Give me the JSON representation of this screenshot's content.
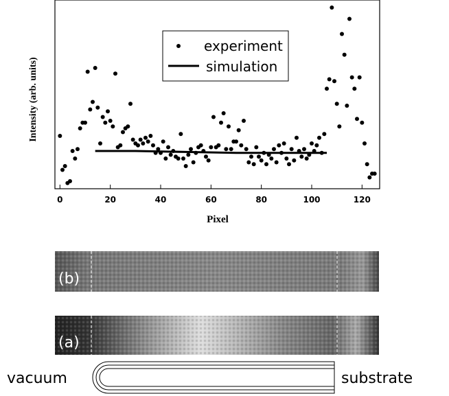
{
  "chart_data": {
    "type": "scatter",
    "y_label": "Intensity (arb. units)",
    "x_label": "Pixel",
    "xlim": [
      -2,
      127
    ],
    "ylim": [
      0,
      100
    ],
    "xticks": [
      0,
      20,
      40,
      60,
      80,
      100,
      120
    ],
    "legend": "top-center",
    "series": [
      {
        "name": "experiment",
        "color": "#000000",
        "kind": "points",
        "x": [
          0,
          1,
          2,
          3,
          4,
          5,
          6,
          7,
          8,
          9,
          10,
          11,
          12,
          13,
          14,
          15,
          16,
          17,
          18,
          19,
          20,
          21,
          22,
          23,
          24,
          25,
          26,
          27,
          28,
          29,
          30,
          31,
          32,
          33,
          34,
          35,
          36,
          37,
          38,
          39,
          40,
          41,
          42,
          43,
          44,
          45,
          46,
          47,
          48,
          49,
          50,
          51,
          52,
          53,
          54,
          55,
          56,
          57,
          58,
          59,
          60,
          61,
          62,
          63,
          64,
          65,
          66,
          67,
          68,
          69,
          70,
          71,
          72,
          73,
          74,
          75,
          76,
          77,
          78,
          79,
          80,
          81,
          82,
          83,
          84,
          85,
          86,
          87,
          88,
          89,
          90,
          91,
          92,
          93,
          94,
          95,
          96,
          97,
          98,
          99,
          100,
          101,
          102,
          103,
          104,
          105,
          106,
          107,
          108,
          109,
          110,
          111,
          112,
          113,
          114,
          115,
          116,
          117,
          118,
          119,
          120,
          121,
          122,
          123,
          124,
          125
        ],
        "values": [
          28,
          10,
          12,
          3,
          4,
          20,
          16,
          21,
          32,
          35,
          35,
          62,
          42,
          46,
          64,
          43,
          24,
          38,
          35,
          41,
          36,
          33,
          61,
          22,
          23,
          30,
          32,
          33,
          45,
          26,
          24,
          23,
          26,
          24,
          27,
          25,
          28,
          23,
          19,
          21,
          19,
          25,
          16,
          22,
          18,
          20,
          17,
          16,
          29,
          16,
          12,
          18,
          21,
          14,
          19,
          22,
          23,
          20,
          17,
          15,
          22,
          38,
          22,
          23,
          35,
          40,
          21,
          33,
          21,
          25,
          25,
          31,
          23,
          36,
          21,
          14,
          17,
          13,
          22,
          17,
          15,
          19,
          13,
          18,
          16,
          21,
          14,
          23,
          19,
          24,
          16,
          13,
          21,
          15,
          27,
          20,
          17,
          21,
          16,
          18,
          24,
          20,
          23,
          27,
          19,
          29,
          53,
          58,
          96,
          57,
          45,
          33,
          82,
          71,
          44,
          90,
          59,
          53,
          37,
          59,
          35,
          24,
          13,
          6,
          8,
          8
        ]
      },
      {
        "name": "simulation",
        "color": "#000000",
        "kind": "line",
        "x": [
          14,
          30,
          50,
          70,
          90,
          106
        ],
        "values": [
          20,
          20,
          19.5,
          19,
          19,
          19
        ]
      }
    ]
  },
  "panels": [
    {
      "label": "(b)"
    },
    {
      "label": "(a)"
    }
  ],
  "regions": {
    "left": "vacuum",
    "right": "substrate"
  }
}
